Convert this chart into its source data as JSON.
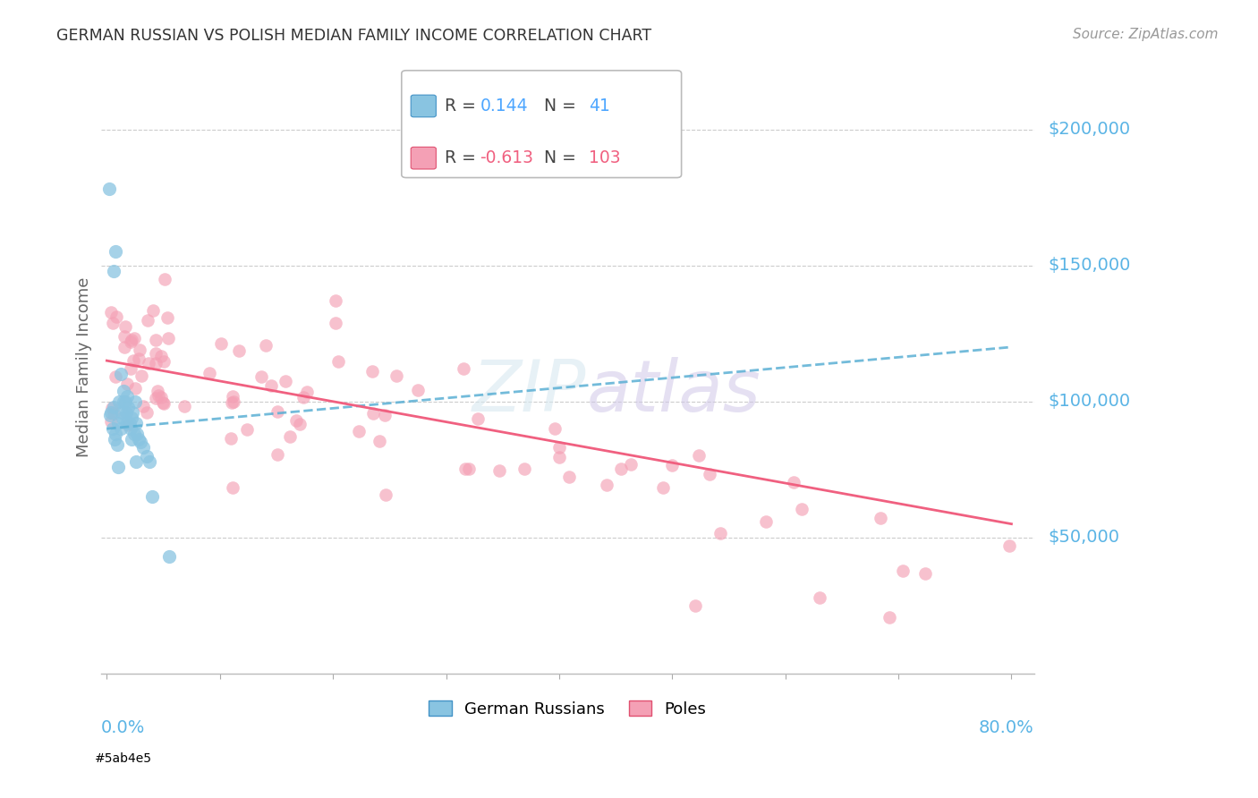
{
  "title": "GERMAN RUSSIAN VS POLISH MEDIAN FAMILY INCOME CORRELATION CHART",
  "source": "Source: ZipAtlas.com",
  "ylabel": "Median Family Income",
  "ytick_labels": [
    "$50,000",
    "$100,000",
    "$150,000",
    "$200,000"
  ],
  "ytick_values": [
    50000,
    100000,
    150000,
    200000
  ],
  "ymin": 0,
  "ymax": 220000,
  "xmin": 0.0,
  "xmax": 0.8,
  "color_blue": "#89c4e1",
  "color_blue_line": "#5aafd4",
  "color_blue_dark": "#4292c6",
  "color_blue_text": "#4da6ff",
  "color_pink": "#f4a0b5",
  "color_pink_line": "#f06080",
  "color_pink_dark": "#e05070",
  "color_axis_labels": "#5ab4e5",
  "legend_r1_R": "0.144",
  "legend_r1_N": "41",
  "legend_r2_R": "-0.613",
  "legend_r2_N": "103",
  "gr_intercept": 95000,
  "gr_slope": 400000,
  "po_intercept": 118000,
  "po_slope": -82000
}
